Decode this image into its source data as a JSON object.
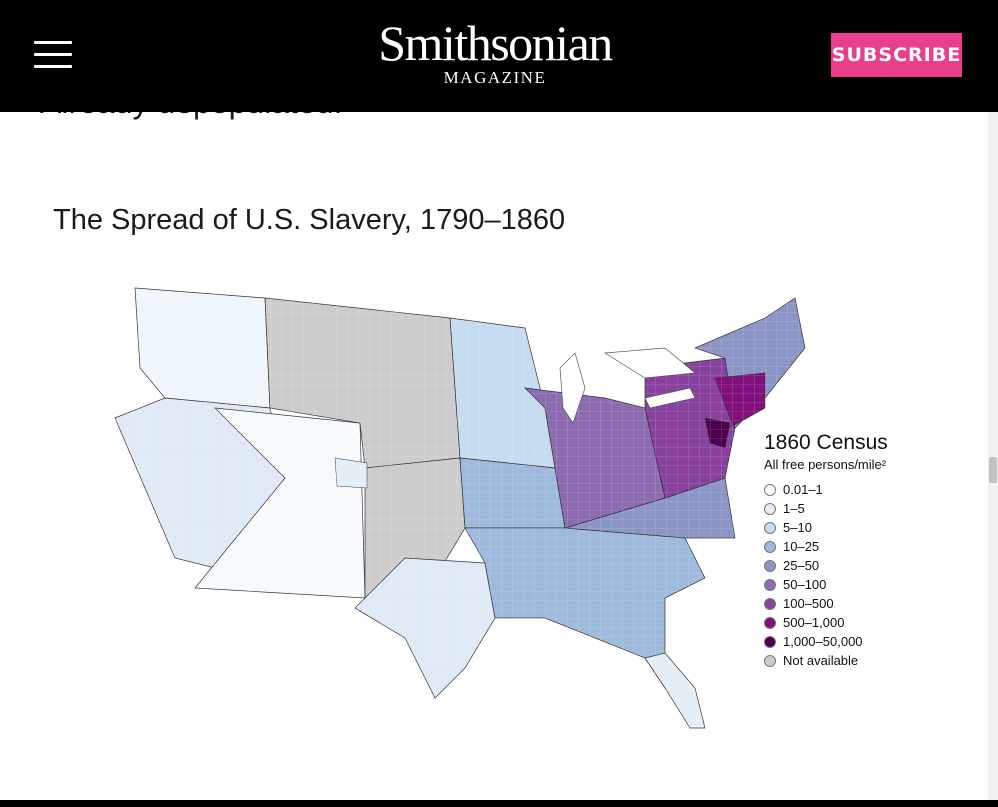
{
  "header": {
    "logo_main": "Smithsonian",
    "logo_sub": "MAGAZINE",
    "subscribe_label": "SUBSCRIBE",
    "menu_icon": "hamburger-menu-icon"
  },
  "article": {
    "clipped_text": "Already depopulated."
  },
  "figure": {
    "title": "The Spread of U.S. Slavery, 1790–1860"
  },
  "legend": {
    "title": "1860 Census",
    "subtitle": "All free persons/mile²",
    "items": [
      {
        "label": "0.01–1",
        "color": "#ffffff"
      },
      {
        "label": "1–5",
        "color": "#e3eef7"
      },
      {
        "label": "5–10",
        "color": "#c6dbef"
      },
      {
        "label": "10–25",
        "color": "#9ebadc"
      },
      {
        "label": "25–50",
        "color": "#8c96c6"
      },
      {
        "label": "50–100",
        "color": "#8c6bb1"
      },
      {
        "label": "100–500",
        "color": "#88419d"
      },
      {
        "label": "500–1,000",
        "color": "#810f7c"
      },
      {
        "label": "1,000–50,000",
        "color": "#4d004b"
      },
      {
        "label": "Not available",
        "color": "#cccccc"
      }
    ]
  }
}
